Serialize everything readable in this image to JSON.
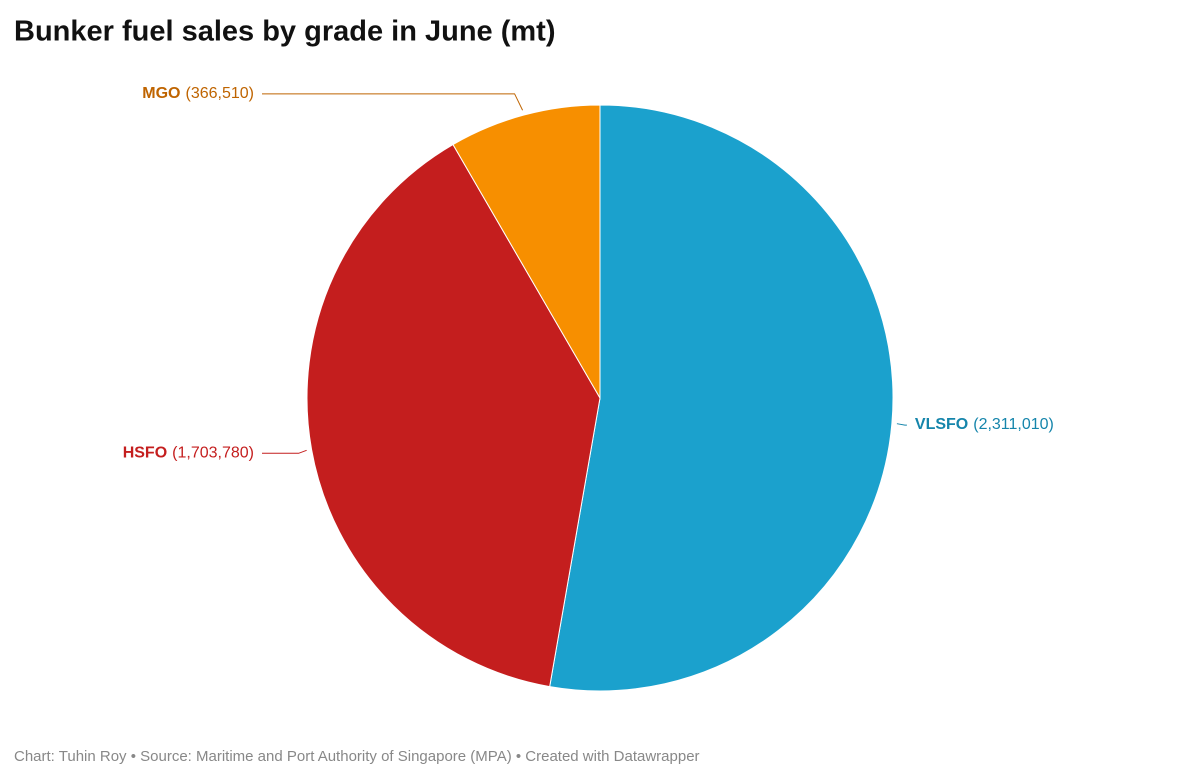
{
  "chart_data": {
    "type": "pie",
    "title": "Bunker fuel sales by grade in June (mt)",
    "categories": [
      "VLSFO",
      "HSFO",
      "MGO"
    ],
    "values": [
      2311010,
      1703780,
      366510
    ],
    "value_labels": [
      "(2,311,010)",
      "(1,703,780)",
      "(366,510)"
    ],
    "colors": [
      "#1ba1cd",
      "#c41e1e",
      "#f78f00"
    ],
    "label_colors": [
      "#1585ab",
      "#c41e1e",
      "#bf6400"
    ],
    "footer": "Chart: Tuhin Roy • Source: Maritime and Port Authority of Singapore (MPA) • Created with Datawrapper"
  }
}
